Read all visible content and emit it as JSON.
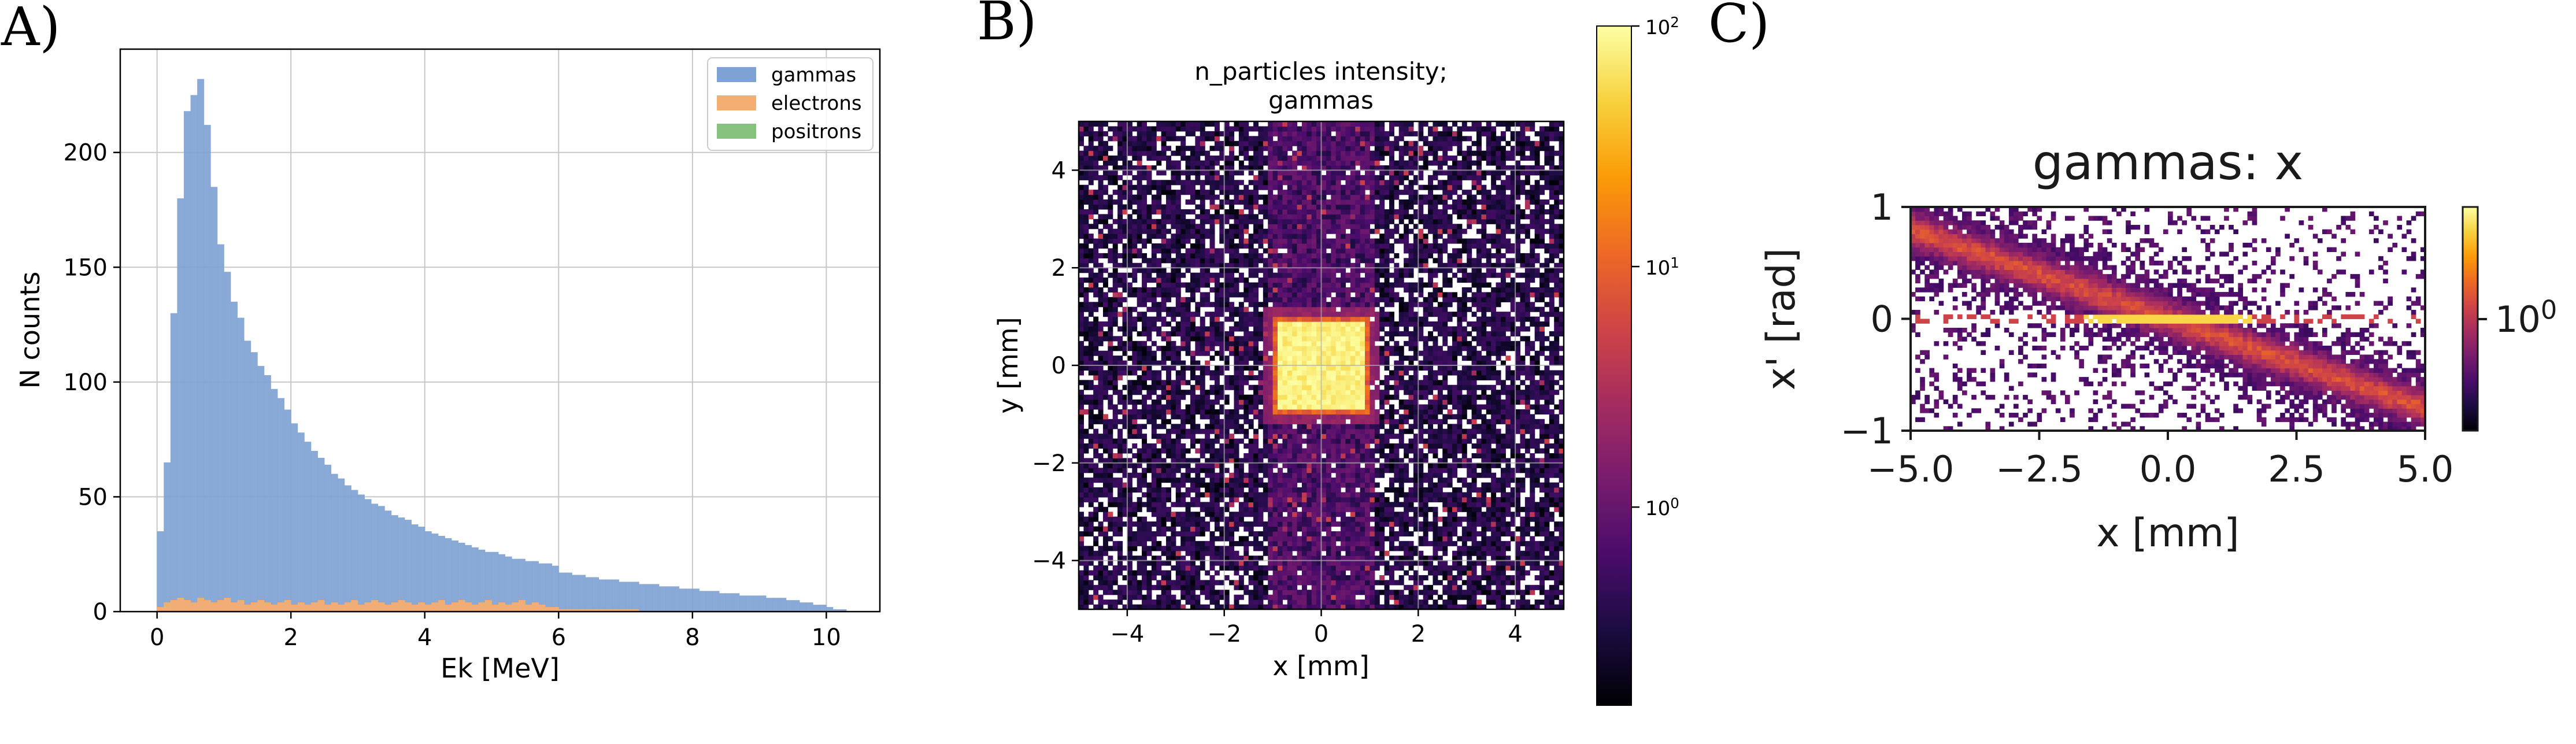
{
  "panels": {
    "a": {
      "letter": "A)"
    },
    "b": {
      "letter": "B)"
    },
    "c": {
      "letter": "C)"
    }
  },
  "colors": {
    "gammas": "#7fa2d4",
    "electrons": "#f5ae71",
    "positrons": "#86c17d",
    "grid": "#c8c8c8",
    "inferno": [
      "#000004",
      "#1b0c41",
      "#4a0c6b",
      "#781c6d",
      "#a52c60",
      "#cf4446",
      "#ed6925",
      "#fb9b06",
      "#f7d13d",
      "#fcffa4"
    ]
  },
  "chart_data": [
    {
      "id": "A",
      "type": "bar",
      "xlabel": "Ek [MeV]",
      "ylabel": "N counts",
      "xlim": [
        -0.55,
        10.8
      ],
      "ylim": [
        0,
        245
      ],
      "xticks": [
        "0",
        "2",
        "4",
        "6",
        "8",
        "10"
      ],
      "yticks": [
        "0",
        "50",
        "100",
        "150",
        "200"
      ],
      "grid": true,
      "legend_position": "top-right",
      "bin_width": 0.1,
      "bin_start": 0.0,
      "series": [
        {
          "name": "gammas",
          "values": [
            35,
            65,
            130,
            180,
            218,
            225,
            232,
            212,
            185,
            160,
            148,
            135,
            128,
            118,
            113,
            107,
            103,
            97,
            93,
            88,
            82,
            78,
            74,
            70,
            67,
            64,
            60,
            58,
            55,
            53,
            51,
            49,
            47,
            46,
            44,
            42,
            41,
            40,
            38,
            37,
            35,
            34,
            33,
            32,
            31,
            30,
            29,
            28,
            27,
            26,
            26,
            25,
            24,
            23,
            23,
            22,
            22,
            21,
            21,
            20,
            17,
            17,
            16,
            16,
            15,
            15,
            14,
            14,
            14,
            13,
            13,
            13,
            12,
            12,
            12,
            11,
            11,
            11,
            10,
            10,
            10,
            9,
            9,
            9,
            8,
            8,
            8,
            7,
            7,
            7,
            7,
            6,
            6,
            6,
            5,
            5,
            4,
            4,
            3,
            3,
            2,
            1,
            1
          ]
        },
        {
          "name": "electrons",
          "values": [
            2,
            4,
            5,
            6,
            5,
            4,
            6,
            5,
            4,
            5,
            6,
            4,
            5,
            3,
            4,
            5,
            4,
            3,
            4,
            5,
            3,
            4,
            3,
            4,
            5,
            3,
            4,
            3,
            4,
            5,
            3,
            4,
            5,
            4,
            3,
            4,
            5,
            4,
            3,
            4,
            3,
            4,
            5,
            3,
            4,
            5,
            4,
            3,
            4,
            5,
            3,
            4,
            3,
            4,
            5,
            3,
            4,
            3,
            2,
            2,
            1,
            1,
            1,
            1,
            1,
            1,
            1,
            1,
            1,
            1,
            1,
            1,
            0,
            0,
            0,
            0,
            0,
            0,
            0,
            0,
            0,
            0,
            0,
            0,
            0,
            0,
            0,
            0,
            0,
            0,
            0,
            0,
            0,
            0,
            0,
            0,
            0,
            0,
            0,
            0,
            0,
            0,
            0
          ]
        },
        {
          "name": "positrons",
          "values": []
        }
      ]
    },
    {
      "id": "B",
      "type": "heatmap",
      "title": "n_particles intensity;\ngammas",
      "xlabel": "x [mm]",
      "ylabel": "y [mm]",
      "xlim": [
        -5,
        5
      ],
      "ylim": [
        -5,
        5
      ],
      "xticks": [
        "−4",
        "−2",
        "0",
        "2",
        "4"
      ],
      "yticks": [
        "−4",
        "−2",
        "0",
        "2",
        "4"
      ],
      "grid": true,
      "colormap": "inferno",
      "colorbar_scale": "log",
      "colorbar_range": [
        0.15,
        100
      ],
      "colorbar_ticks": [
        "10^0",
        "10^1",
        "10^2"
      ],
      "bins": 100,
      "bright_square": {
        "x": [
          -1,
          1
        ],
        "y": [
          -1,
          1
        ]
      }
    },
    {
      "id": "C",
      "type": "heatmap",
      "title": "gammas: x",
      "xlabel": "x [mm]",
      "ylabel": "x' [rad]",
      "xlim": [
        -5,
        5
      ],
      "ylim": [
        -1,
        1
      ],
      "xticks": [
        "−5.0",
        "−2.5",
        "0.0",
        "2.5",
        "5.0"
      ],
      "yticks": [
        "−1",
        "0",
        "1"
      ],
      "colormap": "inferno",
      "colorbar_scale": "log",
      "colorbar_ticks": [
        "10^0"
      ]
    }
  ]
}
